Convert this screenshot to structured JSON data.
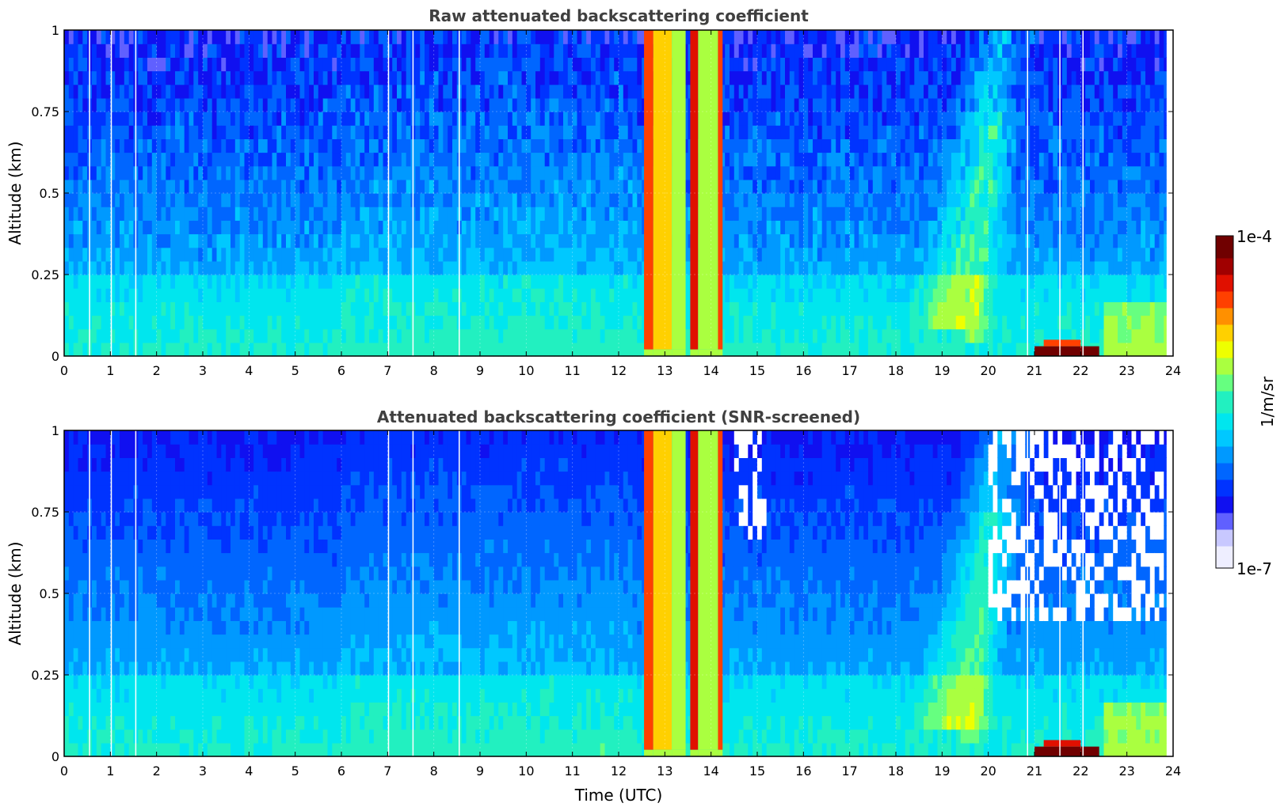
{
  "colorbar": {
    "top_label": "1e-4",
    "bottom_label": "1e-7",
    "unit_label": "1/m/sr",
    "colors": [
      "#eeeeff",
      "#c8c8ff",
      "#6060ff",
      "#1010f0",
      "#0033ff",
      "#0066ff",
      "#0099ff",
      "#00c8ff",
      "#00e6ee",
      "#22f0c0",
      "#66ff80",
      "#aaff40",
      "#eeff00",
      "#ffd000",
      "#ff9000",
      "#ff4000",
      "#e01000",
      "#a00000",
      "#700000"
    ]
  },
  "chart_data": [
    {
      "type": "heatmap",
      "title": "Raw attenuated backscattering coefficient",
      "xlabel": "",
      "ylabel": "Altitude (km)",
      "xlim": [
        0,
        24
      ],
      "ylim": [
        0,
        1
      ],
      "x_ticks": [
        "0",
        "1",
        "2",
        "3",
        "4",
        "5",
        "6",
        "7",
        "8",
        "9",
        "10",
        "11",
        "12",
        "13",
        "14",
        "15",
        "16",
        "17",
        "18",
        "19",
        "20",
        "21",
        "22",
        "23",
        "24"
      ],
      "y_ticks": [
        "0",
        "0.25",
        "0.5",
        "0.75",
        "1"
      ],
      "grid": true,
      "color_scale": "log",
      "value_range": [
        "1e-7",
        "1e-4"
      ],
      "data_end_time": 23.85,
      "bands": [
        {
          "from": 12.55,
          "to": 12.75,
          "level": 0.84
        },
        {
          "from": 12.75,
          "to": 13.15,
          "level": 0.72
        },
        {
          "from": 13.15,
          "to": 13.45,
          "level": 0.6
        },
        {
          "from": 13.55,
          "to": 13.72,
          "level": 0.86
        },
        {
          "from": 13.72,
          "to": 14.15,
          "level": 0.62
        },
        {
          "from": 14.15,
          "to": 14.25,
          "level": 0.8
        }
      ],
      "surface_feature": {
        "from": 21.0,
        "to": 22.4,
        "top": 0.05,
        "level": 0.95
      },
      "gaps": [
        0.55,
        1.02,
        1.55,
        7.02,
        7.55,
        8.55,
        20.85,
        21.55,
        22.05
      ]
    },
    {
      "type": "heatmap",
      "title": "Attenuated backscattering coefficient (SNR-screened)",
      "xlabel": "Time (UTC)",
      "ylabel": "Altitude (km)",
      "xlim": [
        0,
        24
      ],
      "ylim": [
        0,
        1
      ],
      "x_ticks": [
        "0",
        "1",
        "2",
        "3",
        "4",
        "5",
        "6",
        "7",
        "8",
        "9",
        "10",
        "11",
        "12",
        "13",
        "14",
        "15",
        "16",
        "17",
        "18",
        "19",
        "20",
        "21",
        "22",
        "23",
        "24"
      ],
      "y_ticks": [
        "0",
        "0.25",
        "0.5",
        "0.75",
        "1"
      ],
      "grid": true,
      "color_scale": "log",
      "value_range": [
        "1e-7",
        "1e-4"
      ],
      "data_end_time": 23.85,
      "bands": [
        {
          "from": 12.55,
          "to": 12.75,
          "level": 0.84
        },
        {
          "from": 12.75,
          "to": 13.15,
          "level": 0.72
        },
        {
          "from": 13.15,
          "to": 13.45,
          "level": 0.6
        },
        {
          "from": 13.55,
          "to": 13.72,
          "level": 0.86
        },
        {
          "from": 13.72,
          "to": 14.15,
          "level": 0.62
        },
        {
          "from": 14.15,
          "to": 14.25,
          "level": 0.8
        }
      ],
      "surface_feature": {
        "from": 21.0,
        "to": 22.4,
        "top": 0.05,
        "level": 1.0
      },
      "gaps": [
        0.55,
        1.02,
        1.55,
        7.02,
        7.55,
        8.55,
        20.85,
        21.55,
        22.05
      ],
      "screened_regions": [
        {
          "from": 14.5,
          "to": 15.2,
          "altitude_from": 0.65,
          "altitude_to": 1.0
        },
        {
          "from": 20.0,
          "to": 23.85,
          "altitude_from": 0.4,
          "altitude_to": 1.0
        }
      ]
    }
  ]
}
